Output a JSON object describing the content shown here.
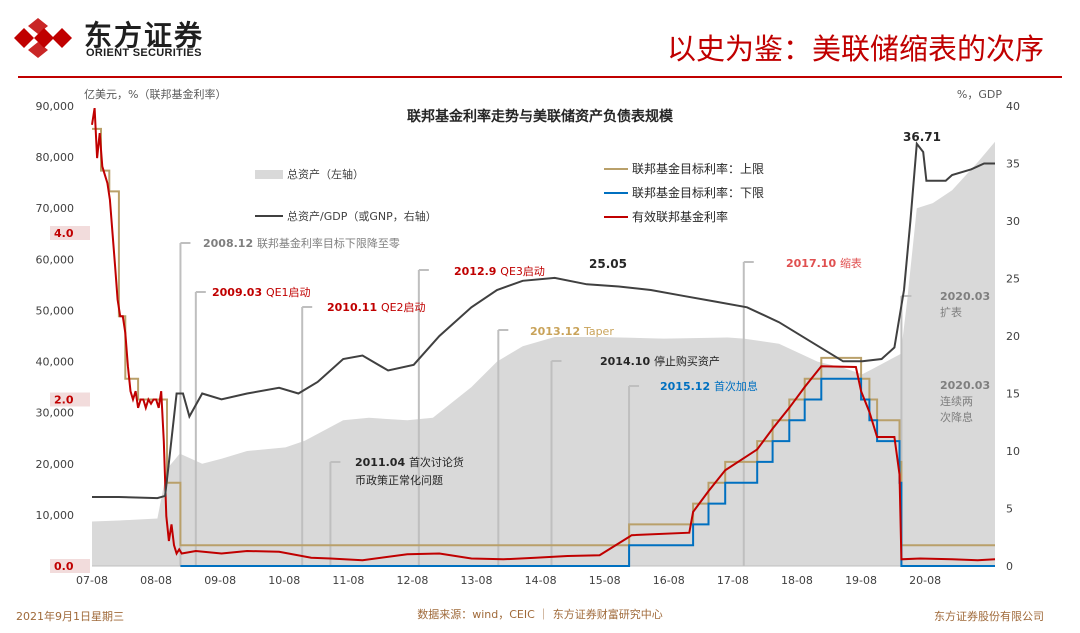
{
  "header": {
    "brand_cn": "东方证券",
    "brand_en": "ORIENT SECURITIES",
    "slide_title": "以史为鉴：美联储缩表的次序"
  },
  "footer": {
    "date": "2021年9月1日星期三",
    "source": "数据来源：wind，CEIC ｜ 东方证券财富研究中心",
    "company": "东方证券股份有限公司"
  },
  "colors": {
    "brand_red": "#c00000",
    "area_gray": "#d9d9d9",
    "ratio_line": "#404040",
    "upper_rate": "#b9a06a",
    "lower_rate": "#0070c0",
    "effective_rate": "#c00000",
    "annotation_line": "#bfbfbf"
  },
  "chart_data": {
    "type": "line",
    "title": "联邦基金利率走势与美联储资产负债表规模",
    "left_axis_label": "亿美元，%（联邦基金利率）",
    "right_axis_label": "%，GDP",
    "ylim_left": [
      0,
      90000
    ],
    "ylim_right": [
      0,
      40
    ],
    "left_ticks": [
      "0",
      "10,000",
      "20,000",
      "30,000",
      "40,000",
      "50,000",
      "60,000",
      "70,000",
      "80,000",
      "90,000"
    ],
    "right_ticks": [
      "0",
      "5",
      "10",
      "15",
      "20",
      "25",
      "30",
      "35",
      "40"
    ],
    "x_ticks": [
      "07-08",
      "08-08",
      "09-08",
      "10-08",
      "11-08",
      "12-08",
      "13-08",
      "14-08",
      "15-08",
      "16-08",
      "17-08",
      "18-08",
      "19-08",
      "20-08"
    ],
    "rate_axis_labels": [
      "4.0",
      "2.0",
      "0.0"
    ],
    "legend": {
      "total_assets": "总资产（左轴）",
      "assets_gdp": "总资产/GDP（或GNP，右轴）",
      "upper": "联邦基金目标利率：上限",
      "lower": "联邦基金目标利率：下限",
      "effective": "有效联邦基金利率"
    },
    "peak_labels": [
      "25.05",
      "36.71"
    ],
    "annotations": [
      {
        "date": "2008.12",
        "text": "联邦基金利率目标下限降至零",
        "color": "#7f7f7f"
      },
      {
        "date": "2009.03",
        "text": "QE1启动",
        "color": "#c00000"
      },
      {
        "date": "2010.11",
        "text": "QE2启动",
        "color": "#c00000"
      },
      {
        "date": "2011.04",
        "text": "首次讨论货",
        "text2": "币政策正常化问题",
        "color": "#262626"
      },
      {
        "date": "2012.9",
        "text": "QE3启动",
        "color": "#c00000"
      },
      {
        "date": "2013.12",
        "text": "Taper",
        "color": "#c9a35a"
      },
      {
        "date": "2014.10",
        "text": "停止购买资产",
        "color": "#262626"
      },
      {
        "date": "2015.12",
        "text": "首次加息",
        "color": "#0070c0"
      },
      {
        "date": "2017.10",
        "text": "缩表",
        "color": "#e05050"
      },
      {
        "date": "2020.03",
        "text": "扩表",
        "color": "#7f7f7f"
      },
      {
        "date": "2020.03",
        "text": "连续两",
        "text2": "次降息",
        "color": "#7f7f7f"
      }
    ],
    "series": {
      "total_assets": {
        "x": [
          2007.58,
          2008.0,
          2008.6,
          2008.75,
          2008.95,
          2009.3,
          2009.6,
          2010.0,
          2010.6,
          2010.9,
          2011.5,
          2011.9,
          2012.5,
          2012.9,
          2013.5,
          2013.9,
          2014.3,
          2014.8,
          2015.5,
          2016.5,
          2017.5,
          2017.75,
          2018.3,
          2018.9,
          2019.3,
          2019.6,
          2019.75,
          2020.2,
          2020.3,
          2020.45,
          2020.7,
          2021.0,
          2021.4,
          2021.67
        ],
        "y": [
          8700,
          8900,
          9300,
          19000,
          22000,
          20000,
          21000,
          22500,
          23200,
          24500,
          28500,
          29000,
          28500,
          29000,
          35000,
          40000,
          43000,
          44800,
          44800,
          44500,
          44700,
          44500,
          43500,
          40000,
          38800,
          37500,
          38500,
          41500,
          52000,
          70000,
          71000,
          73500,
          79000,
          83000
        ]
      },
      "assets_gdp": {
        "x": [
          2007.58,
          2008.0,
          2008.6,
          2008.72,
          2008.8,
          2008.9,
          2009.0,
          2009.1,
          2009.3,
          2009.6,
          2010.0,
          2010.5,
          2010.8,
          2011.1,
          2011.5,
          2011.8,
          2012.2,
          2012.6,
          2013.0,
          2013.5,
          2013.9,
          2014.3,
          2014.8,
          2015.3,
          2015.8,
          2016.3,
          2016.8,
          2017.3,
          2017.8,
          2018.3,
          2018.8,
          2019.3,
          2019.6,
          2019.9,
          2020.1,
          2020.25,
          2020.35,
          2020.45,
          2020.55,
          2020.6,
          2020.7,
          2020.9,
          2021.0,
          2021.3,
          2021.5,
          2021.67
        ],
        "y": [
          6.0,
          6.0,
          5.9,
          6.1,
          10.0,
          15.0,
          15.0,
          13.0,
          15.0,
          14.5,
          15.0,
          15.5,
          15.0,
          16.0,
          18.0,
          18.3,
          17.0,
          17.5,
          20.0,
          22.5,
          24.0,
          24.8,
          25.05,
          24.5,
          24.3,
          24.0,
          23.5,
          23.0,
          22.5,
          21.2,
          19.5,
          17.8,
          17.8,
          18.0,
          19.0,
          24.0,
          30.0,
          36.71,
          36.0,
          33.5,
          33.5,
          33.5,
          34.0,
          34.5,
          35.0,
          35.0
        ]
      },
      "upper": {
        "x": [
          2007.58,
          2007.72,
          2007.85,
          2008.0,
          2008.1,
          2008.3,
          2008.75,
          2008.96,
          2015.96,
          2016.96,
          2017.2,
          2017.46,
          2017.96,
          2018.2,
          2018.46,
          2018.7,
          2018.96,
          2019.58,
          2019.71,
          2019.83,
          2020.18,
          2020.21,
          2021.67
        ],
        "y": [
          5.25,
          4.75,
          4.5,
          3.0,
          2.25,
          2.0,
          1.0,
          0.25,
          0.5,
          0.75,
          1.0,
          1.25,
          1.5,
          1.75,
          2.0,
          2.25,
          2.5,
          2.25,
          2.0,
          1.75,
          1.25,
          0.25,
          0.25
        ]
      },
      "lower": {
        "x": [
          2008.96,
          2015.96,
          2016.96,
          2017.2,
          2017.46,
          2017.96,
          2018.2,
          2018.46,
          2018.7,
          2018.96,
          2019.58,
          2019.71,
          2019.83,
          2020.18,
          2020.21,
          2021.67
        ],
        "y": [
          0.0,
          0.25,
          0.5,
          0.75,
          1.0,
          1.25,
          1.5,
          1.75,
          2.0,
          2.25,
          2.0,
          1.75,
          1.5,
          1.0,
          0.0,
          0.0
        ]
      },
      "effective": {
        "x": [
          2007.58,
          2007.62,
          2007.66,
          2007.7,
          2007.74,
          2007.78,
          2007.82,
          2007.86,
          2007.9,
          2007.94,
          2007.98,
          2008.02,
          2008.06,
          2008.1,
          2008.14,
          2008.18,
          2008.22,
          2008.26,
          2008.3,
          2008.34,
          2008.38,
          2008.42,
          2008.46,
          2008.5,
          2008.54,
          2008.58,
          2008.62,
          2008.66,
          2008.7,
          2008.74,
          2008.78,
          2008.82,
          2008.86,
          2008.9,
          2008.94,
          2008.98,
          2009.2,
          2009.6,
          2010.0,
          2010.5,
          2011.0,
          2011.3,
          2011.8,
          2012.5,
          2013.0,
          2013.5,
          2014.0,
          2014.5,
          2015.0,
          2015.5,
          2015.96,
          2016.0,
          2016.9,
          2016.96,
          2017.2,
          2017.46,
          2017.96,
          2018.2,
          2018.46,
          2018.7,
          2018.96,
          2019.5,
          2019.58,
          2019.71,
          2019.83,
          2020.1,
          2020.18,
          2020.21,
          2020.5,
          2021.0,
          2021.4,
          2021.67
        ],
        "y": [
          5.3,
          5.5,
          4.9,
          5.2,
          4.8,
          4.7,
          4.6,
          4.4,
          4.0,
          3.6,
          3.2,
          3.0,
          3.0,
          2.8,
          2.4,
          2.1,
          2.0,
          2.1,
          1.9,
          2.0,
          2.0,
          1.9,
          2.0,
          1.95,
          2.0,
          2.0,
          1.9,
          2.1,
          1.5,
          0.6,
          0.3,
          0.5,
          0.25,
          0.15,
          0.2,
          0.15,
          0.18,
          0.15,
          0.18,
          0.17,
          0.1,
          0.09,
          0.07,
          0.14,
          0.15,
          0.09,
          0.08,
          0.1,
          0.12,
          0.13,
          0.35,
          0.37,
          0.4,
          0.65,
          0.9,
          1.15,
          1.4,
          1.65,
          1.9,
          2.15,
          2.4,
          2.39,
          2.1,
          1.85,
          1.55,
          1.55,
          1.1,
          0.08,
          0.09,
          0.08,
          0.07,
          0.08
        ]
      }
    }
  }
}
